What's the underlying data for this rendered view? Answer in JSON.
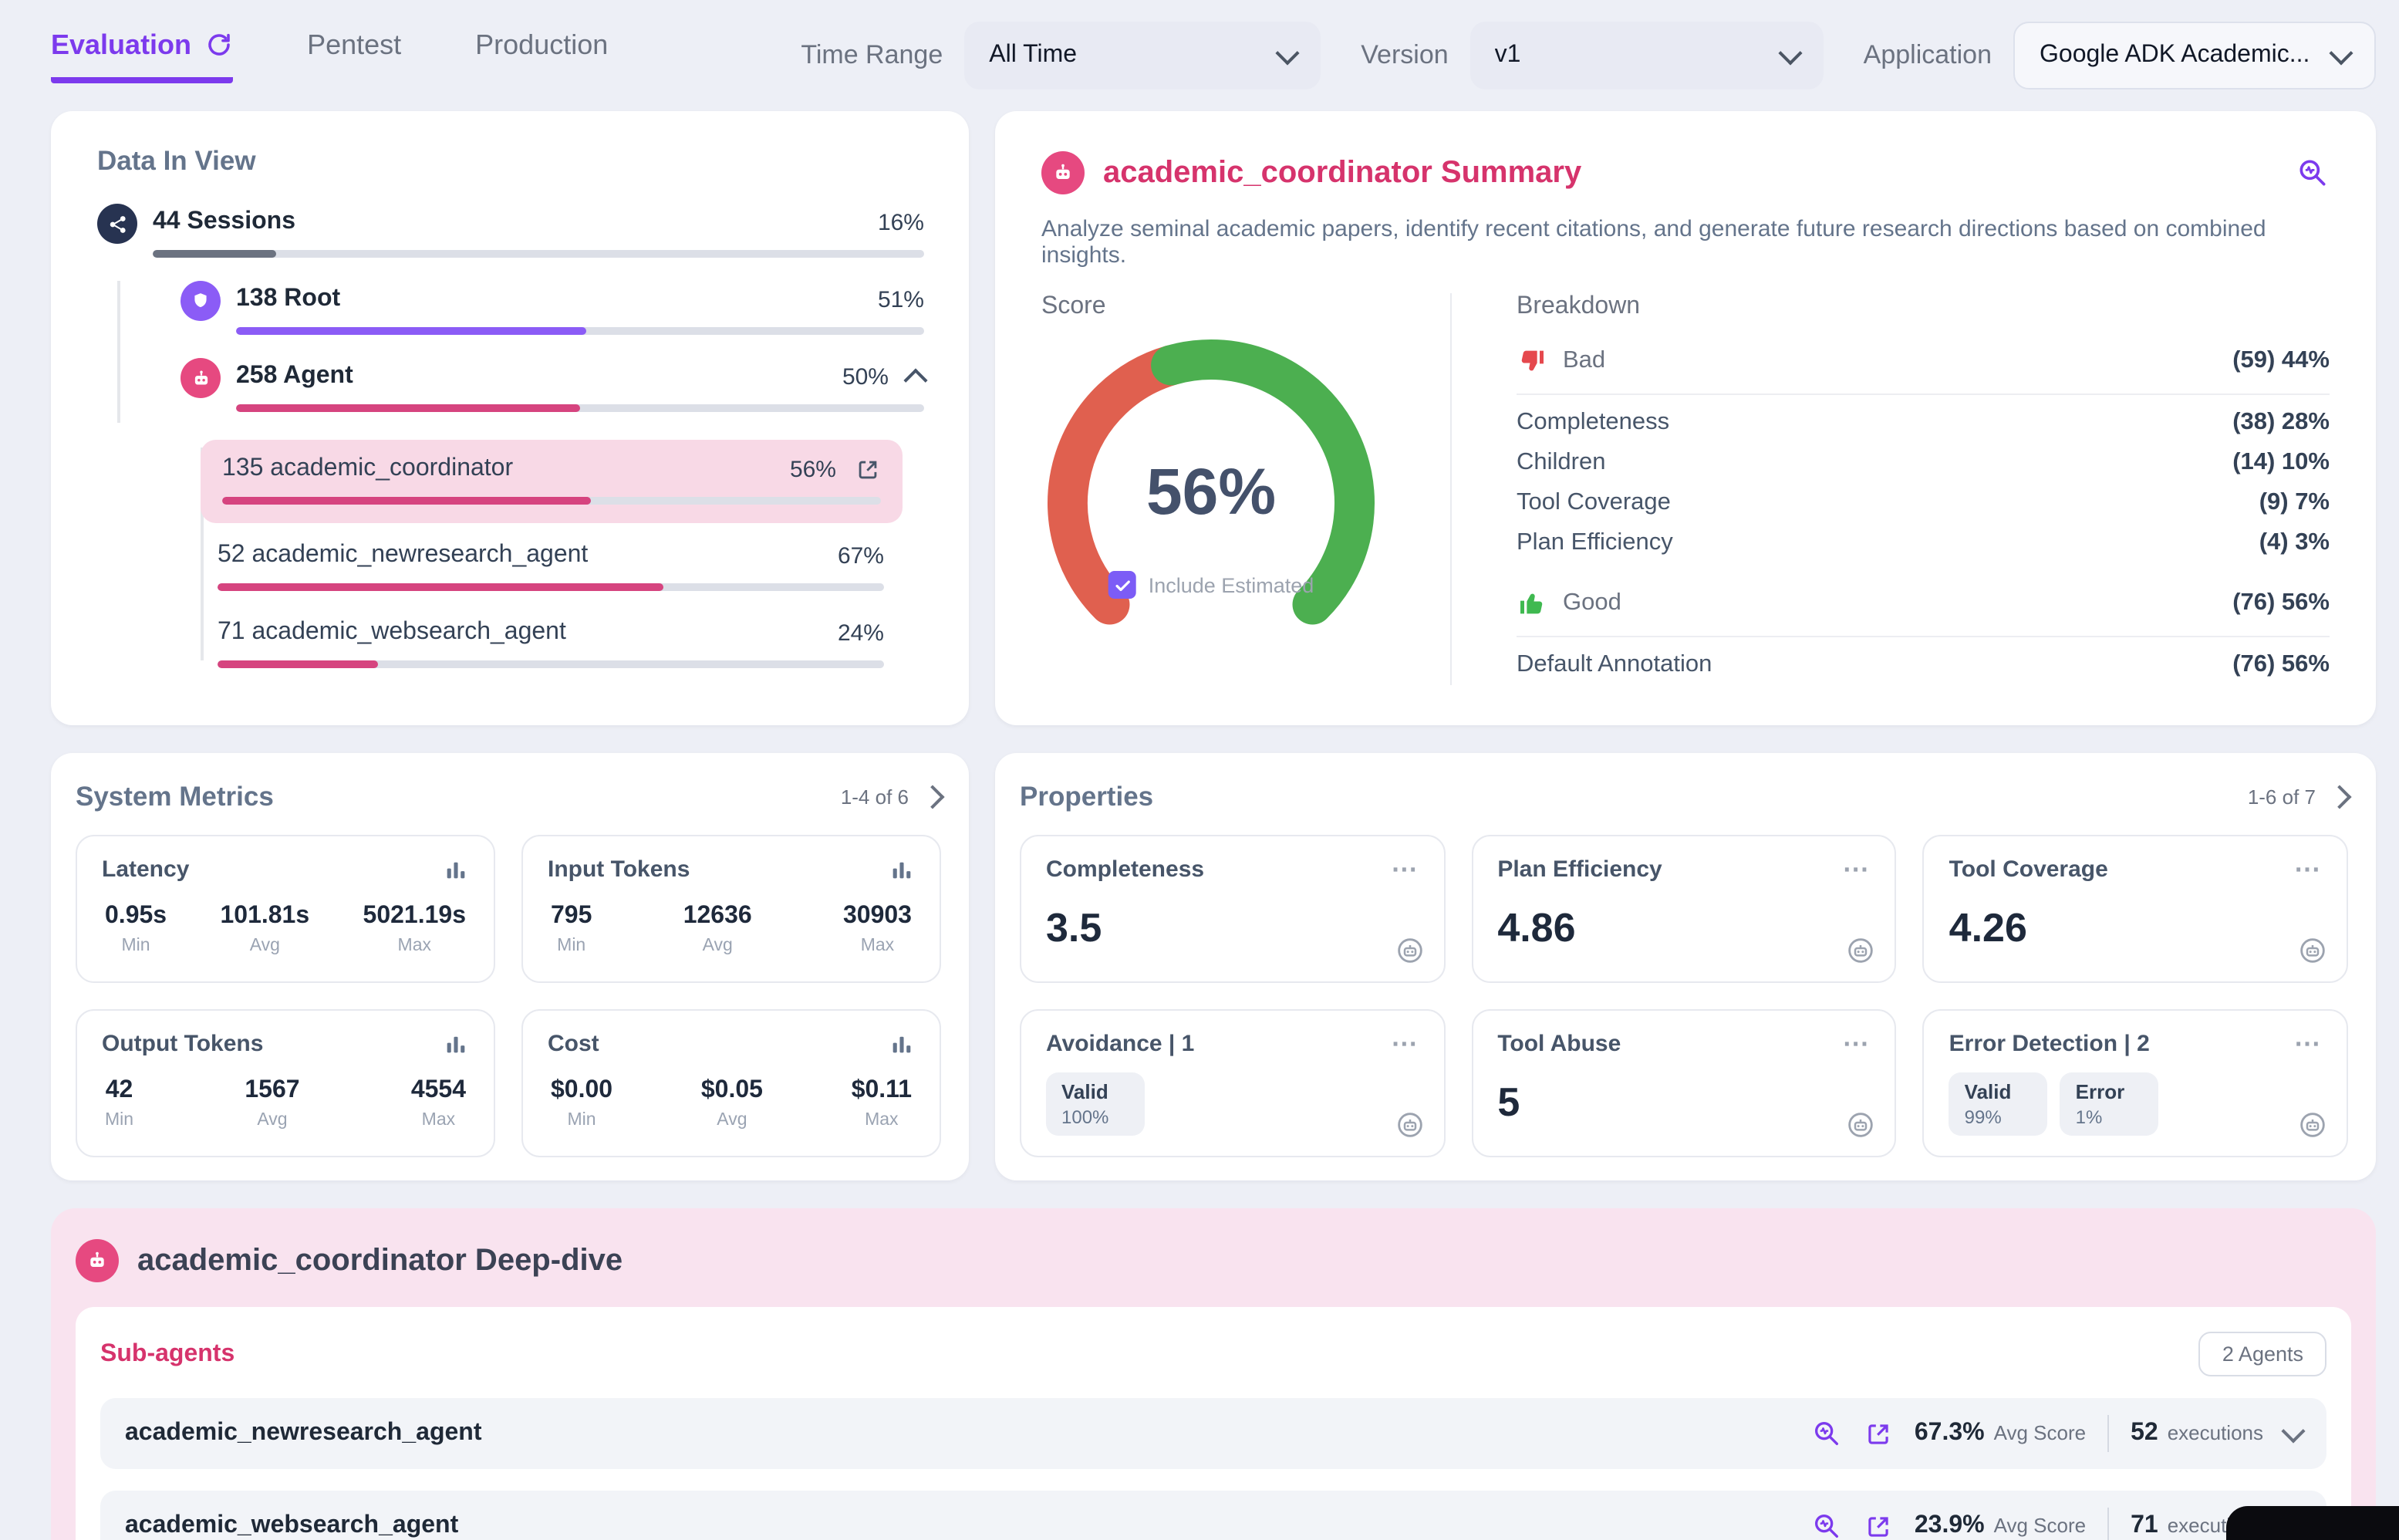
{
  "colors": {
    "accent_purple": "#7c3aed",
    "accent_pink": "#d6336c",
    "pink_icon": "#e64980",
    "gauge_red": "#e0604f",
    "gauge_green": "#4caf50",
    "page_bg": "#edeff6"
  },
  "icons": {
    "more": "⋯",
    "refresh": "circular-arrow",
    "scan": "search-with-pulse",
    "external": "open-in-new",
    "thumb_up": "thumbs-up",
    "thumb_down": "thumbs-down",
    "bar_chart": "column-chart",
    "robot": "agent-robot",
    "network": "sessions-network",
    "shield": "root-shield",
    "annotation_bot": "annotation-robot"
  },
  "tabs": {
    "evaluation": "Evaluation",
    "pentest": "Pentest",
    "production": "Production"
  },
  "filters": {
    "time_range_label": "Time Range",
    "time_range_value": "All Time",
    "version_label": "Version",
    "version_value": "v1",
    "application_label": "Application",
    "application_value": "Google ADK Academic..."
  },
  "data_in_view": {
    "title": "Data In View",
    "rows": [
      {
        "label": "44 Sessions",
        "pct": "16%",
        "fill": 16
      },
      {
        "label": "138 Root",
        "pct": "51%",
        "fill": 51
      },
      {
        "label": "258 Agent",
        "pct": "50%",
        "fill": 50
      },
      {
        "label": "135 academic_coordinator",
        "pct": "56%",
        "fill": 56
      },
      {
        "label": "52 academic_newresearch_agent",
        "pct": "67%",
        "fill": 67
      },
      {
        "label": "71 academic_websearch_agent",
        "pct": "24%",
        "fill": 24
      }
    ]
  },
  "summary": {
    "title": "academic_coordinator Summary",
    "description": "Analyze seminal academic papers, identify recent citations, and generate future research directions based on combined insights.",
    "score_label": "Score",
    "include_estimated_label": "Include Estimated",
    "include_estimated_checked": true,
    "breakdown": {
      "title": "Breakdown",
      "bad_label": "Bad",
      "bad_value": "(59) 44%",
      "bad_items": [
        {
          "label": "Completeness",
          "value": "(38) 28%"
        },
        {
          "label": "Children",
          "value": "(14) 10%"
        },
        {
          "label": "Tool Coverage",
          "value": "(9) 7%"
        },
        {
          "label": "Plan Efficiency",
          "value": "(4) 3%"
        }
      ],
      "good_label": "Good",
      "good_value": "(76) 56%",
      "good_items": [
        {
          "label": "Default Annotation",
          "value": "(76) 56%"
        }
      ]
    }
  },
  "system_metrics": {
    "title": "System Metrics",
    "pagination": "1-4 of 6",
    "min_label": "Min",
    "avg_label": "Avg",
    "max_label": "Max",
    "tiles": [
      {
        "title": "Latency",
        "min": "0.95s",
        "avg": "101.81s",
        "max": "5021.19s"
      },
      {
        "title": "Input Tokens",
        "min": "795",
        "avg": "12636",
        "max": "30903"
      },
      {
        "title": "Output Tokens",
        "min": "42",
        "avg": "1567",
        "max": "4554"
      },
      {
        "title": "Cost",
        "min": "$0.00",
        "avg": "$0.05",
        "max": "$0.11"
      }
    ]
  },
  "properties": {
    "title": "Properties",
    "pagination": "1-6 of 7",
    "tiles": [
      {
        "title": "Completeness",
        "value": "3.5"
      },
      {
        "title": "Plan Efficiency",
        "value": "4.86"
      },
      {
        "title": "Tool Coverage",
        "value": "4.26"
      },
      {
        "title": "Avoidance | 1",
        "chips": [
          {
            "label": "Valid",
            "value": "100%"
          }
        ]
      },
      {
        "title": "Tool Abuse",
        "value": "5"
      },
      {
        "title": "Error Detection | 2",
        "chips": [
          {
            "label": "Valid",
            "value": "99%"
          },
          {
            "label": "Error",
            "value": "1%"
          }
        ]
      }
    ]
  },
  "deep_dive": {
    "title": "academic_coordinator Deep-dive",
    "subagents_title": "Sub-agents",
    "agents_badge": "2 Agents",
    "avg_score_label": "Avg Score",
    "executions_label": "executions",
    "rows": [
      {
        "name": "academic_newresearch_agent",
        "avg_score": "67.3%",
        "executions": "52"
      },
      {
        "name": "academic_websearch_agent",
        "avg_score": "23.9%",
        "executions": "71"
      }
    ]
  },
  "chart_data": [
    {
      "type": "gauge",
      "title": "Score",
      "center_label": "56%",
      "segments": [
        {
          "name": "Bad",
          "value": 44,
          "color": "#e0604f"
        },
        {
          "name": "Good",
          "value": 56,
          "color": "#4caf50"
        }
      ],
      "arc_total_degrees": 270
    },
    {
      "type": "bar",
      "title": "Data In View",
      "categories": [
        "44 Sessions",
        "138 Root",
        "258 Agent",
        "135 academic_coordinator",
        "52 academic_newresearch_agent",
        "71 academic_websearch_agent"
      ],
      "values": [
        16,
        51,
        50,
        56,
        67,
        24
      ],
      "unit": "%",
      "xlim": [
        0,
        100
      ]
    }
  ]
}
